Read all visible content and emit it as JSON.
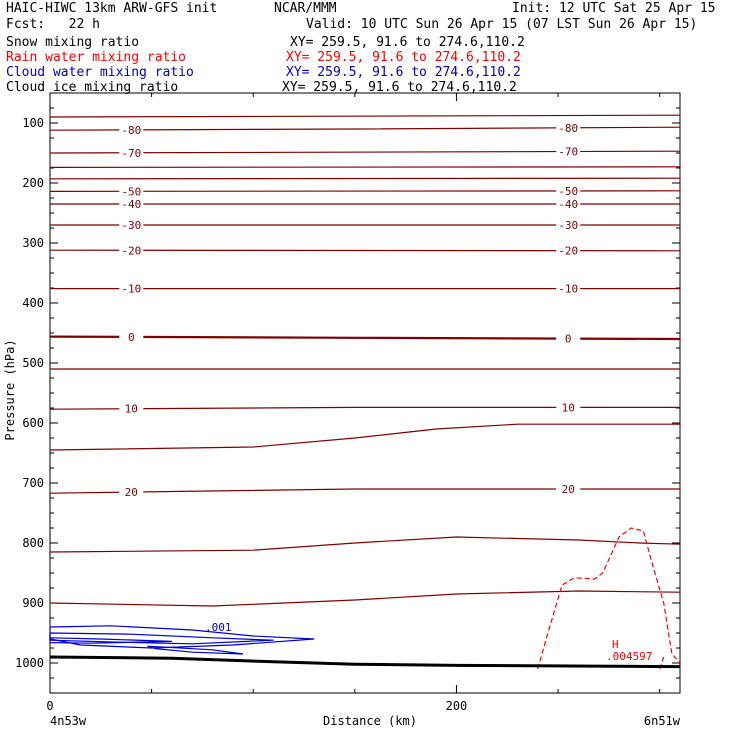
{
  "header": {
    "model": "HAIC-HIWC 13km ARW-GFS init",
    "org": "NCAR/MMM",
    "init": "Init: 12 UTC Sat 25 Apr 15",
    "fcst": "Fcst:   22 h",
    "valid": "Valid: 10 UTC Sun 26 Apr 15 (07 LST Sun 26 Apr 15)"
  },
  "fields": [
    {
      "name": "Snow mixing ratio",
      "xy": "XY= 259.5, 91.6 to 274.6,110.2",
      "color": "#000000"
    },
    {
      "name": "Rain water mixing ratio",
      "xy": "XY= 259.5, 91.6 to 274.6,110.2",
      "color": "#ff0000"
    },
    {
      "name": "Cloud water mixing ratio",
      "xy": "XY= 259.5, 91.6 to 274.6,110.2",
      "color": "#0000cc"
    },
    {
      "name": "Cloud ice mixing ratio",
      "xy": "XY= 259.5, 91.6 to 274.6,110.2",
      "color": "#000000"
    }
  ],
  "chart_data": {
    "type": "line",
    "xlabel": "Distance (km)",
    "ylabel": "Pressure (hPa)",
    "xlim": [
      0,
      310
    ],
    "ylim": [
      50,
      1050
    ],
    "x_ticks": [
      0,
      200
    ],
    "y_ticks": [
      100,
      200,
      300,
      400,
      500,
      600,
      700,
      800,
      900,
      1000
    ],
    "x_endpoints": {
      "left": "4n53w",
      "right": "6n51w"
    },
    "colors": {
      "temperature": "#800000",
      "rain": "#ff0000",
      "cloud_water": "#0000cc",
      "terrain": "#000000"
    },
    "temperature_contours": [
      {
        "value": -80,
        "label": "-80",
        "points": [
          [
            0,
            112
          ],
          [
            150,
            110
          ],
          [
            310,
            107
          ]
        ]
      },
      {
        "value": -70,
        "label": "-70",
        "points": [
          [
            0,
            150
          ],
          [
            310,
            147
          ]
        ]
      },
      {
        "value": -50,
        "label": "-50",
        "points": [
          [
            0,
            214
          ],
          [
            310,
            213
          ]
        ]
      },
      {
        "value": -40,
        "label": "-40",
        "points": [
          [
            0,
            235
          ],
          [
            310,
            235
          ]
        ]
      },
      {
        "value": -30,
        "label": "-30",
        "points": [
          [
            0,
            270
          ],
          [
            310,
            270
          ]
        ]
      },
      {
        "value": -20,
        "label": "-20",
        "points": [
          [
            0,
            312
          ],
          [
            310,
            313
          ]
        ]
      },
      {
        "value": -10,
        "label": "-10",
        "points": [
          [
            0,
            376
          ],
          [
            310,
            376
          ]
        ]
      },
      {
        "value": 0,
        "label": "0",
        "points": [
          [
            0,
            456
          ],
          [
            150,
            458
          ],
          [
            310,
            460
          ]
        ]
      },
      {
        "value": 10,
        "label": "10",
        "points": [
          [
            0,
            577
          ],
          [
            150,
            574
          ],
          [
            310,
            574
          ]
        ]
      },
      {
        "value": 20,
        "label": "20",
        "points": [
          [
            0,
            717
          ],
          [
            150,
            710
          ],
          [
            310,
            710
          ]
        ]
      }
    ],
    "temperature_unlabeled": [
      {
        "value": -75,
        "points": [
          [
            0,
            90
          ],
          [
            310,
            87
          ]
        ]
      },
      {
        "value": -60,
        "points": [
          [
            0,
            174
          ],
          [
            310,
            173
          ]
        ]
      },
      {
        "value": -55,
        "points": [
          [
            0,
            193
          ],
          [
            310,
            192
          ]
        ]
      },
      {
        "value": 5,
        "points": [
          [
            0,
            510
          ],
          [
            310,
            510
          ]
        ]
      },
      {
        "value": 15,
        "points": [
          [
            0,
            645
          ],
          [
            100,
            640
          ],
          [
            150,
            625
          ],
          [
            190,
            610
          ],
          [
            230,
            602
          ],
          [
            310,
            602
          ]
        ]
      },
      {
        "value": 25,
        "points": [
          [
            0,
            815
          ],
          [
            100,
            812
          ],
          [
            150,
            800
          ],
          [
            200,
            790
          ],
          [
            260,
            795
          ],
          [
            290,
            800
          ],
          [
            310,
            802
          ]
        ]
      },
      {
        "value": 30,
        "points": [
          [
            0,
            900
          ],
          [
            80,
            905
          ],
          [
            150,
            895
          ],
          [
            200,
            885
          ],
          [
            260,
            880
          ],
          [
            310,
            882
          ]
        ]
      }
    ],
    "cloud_water_contours": [
      {
        "value": 0.001,
        "label": ".001"
      }
    ],
    "rain_max": {
      "marker": "H",
      "value": ".004597",
      "x": 282,
      "p": 898
    },
    "terrain_points": [
      [
        0,
        990
      ],
      [
        60,
        992
      ],
      [
        110,
        998
      ],
      [
        150,
        1002
      ],
      [
        200,
        1004
      ],
      [
        310,
        1006
      ]
    ]
  }
}
